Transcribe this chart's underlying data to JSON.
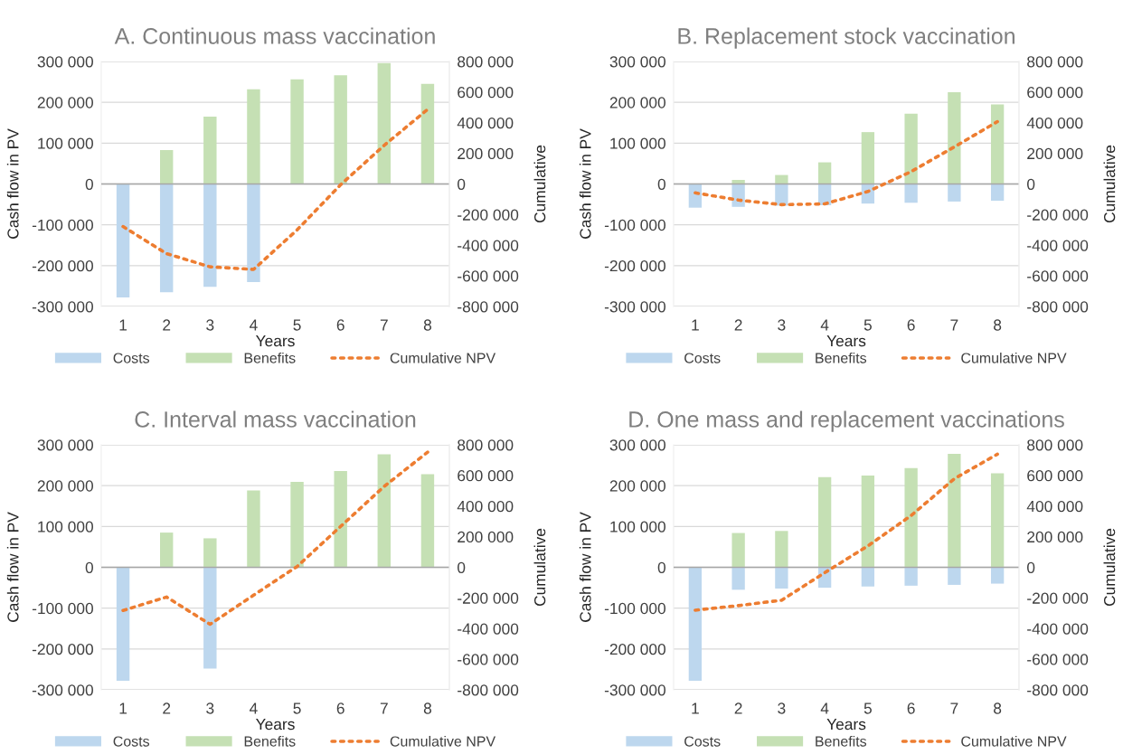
{
  "chart_data": [
    {
      "type": "bar",
      "stacked": true,
      "title": "A. Continuous mass vaccination",
      "xlabel": "Years",
      "ylabel": "Cash flow in PV",
      "y2label": "Cumulative",
      "categories": [
        "1",
        "2",
        "3",
        "4",
        "5",
        "6",
        "7",
        "8"
      ],
      "series": [
        {
          "name": "Costs",
          "color": "#bdd7ee",
          "values": [
            -278000,
            -265000,
            -252000,
            -240000,
            null,
            null,
            null,
            null
          ]
        },
        {
          "name": "Benefits",
          "color": "#c5e0b4",
          "values": [
            null,
            83000,
            165000,
            232000,
            256000,
            266000,
            296000,
            245000
          ]
        },
        {
          "name": "Cumulative NPV",
          "type": "line",
          "axis": "y2",
          "line_style": "dotted",
          "color": "#ed7d31",
          "values": [
            -278000,
            -455000,
            -541000,
            -558000,
            -300000,
            -5000,
            252000,
            487000
          ]
        }
      ],
      "ylim": [
        -300000,
        300000
      ],
      "yticks": [
        {
          "value": -300000,
          "label": "-300 000"
        },
        {
          "value": -200000,
          "label": "-200 000"
        },
        {
          "value": -100000,
          "label": "-100 000"
        },
        0,
        {
          "value": 100000,
          "label": "100 000"
        },
        {
          "value": 200000,
          "label": "200 000"
        },
        {
          "value": 300000,
          "label": "300 000"
        }
      ],
      "y2lim": [
        -800000,
        800000
      ],
      "y2ticks": [
        {
          "value": -800000,
          "label": "-800 000"
        },
        {
          "value": -600000,
          "label": "-600 000"
        },
        {
          "value": -400000,
          "label": "-400 000"
        },
        {
          "value": -200000,
          "label": "-200 000"
        },
        0,
        {
          "value": 200000,
          "label": "200 000"
        },
        {
          "value": 400000,
          "label": "400 000"
        },
        {
          "value": 600000,
          "label": "600 000"
        },
        {
          "value": 800000,
          "label": "800 000"
        }
      ],
      "grid": "y",
      "legend": "bottom"
    },
    {
      "type": "bar",
      "stacked": true,
      "title": "B. Replacement stock vaccination",
      "xlabel": "Years",
      "ylabel": "Cash flow in PV",
      "y2label": "Cumulative",
      "categories": [
        "1",
        "2",
        "3",
        "4",
        "5",
        "6",
        "7",
        "8"
      ],
      "series": [
        {
          "name": "Costs",
          "color": "#bdd7ee",
          "values": [
            -58000,
            -56000,
            -53000,
            -52000,
            -48000,
            -46000,
            -43000,
            -41000
          ]
        },
        {
          "name": "Benefits",
          "color": "#c5e0b4",
          "values": [
            null,
            10000,
            22000,
            53000,
            127000,
            172000,
            225000,
            195000
          ]
        },
        {
          "name": "Cumulative NPV",
          "type": "line",
          "axis": "y2",
          "line_style": "dotted",
          "color": "#ed7d31",
          "values": [
            -58000,
            -105000,
            -135000,
            -130000,
            -49000,
            81000,
            242000,
            407000
          ]
        }
      ],
      "ylim": [
        -300000,
        300000
      ],
      "yticks": [
        {
          "value": -300000,
          "label": "-300 000"
        },
        {
          "value": -200000,
          "label": "-200 000"
        },
        {
          "value": -100000,
          "label": "-100 000"
        },
        0,
        {
          "value": 100000,
          "label": "100 000"
        },
        {
          "value": 200000,
          "label": "200 000"
        },
        {
          "value": 300000,
          "label": "300 000"
        }
      ],
      "y2lim": [
        -800000,
        800000
      ],
      "y2ticks": [
        {
          "value": -800000,
          "label": "-800 000"
        },
        {
          "value": -600000,
          "label": "-600 000"
        },
        {
          "value": -400000,
          "label": "-400 000"
        },
        {
          "value": -200000,
          "label": "-200 000"
        },
        0,
        {
          "value": 200000,
          "label": "200 000"
        },
        {
          "value": 400000,
          "label": "400 000"
        },
        {
          "value": 600000,
          "label": "600 000"
        },
        {
          "value": 800000,
          "label": "800 000"
        }
      ],
      "grid": "y",
      "legend": "bottom"
    },
    {
      "type": "bar",
      "stacked": true,
      "title": "C. Interval mass vaccination",
      "xlabel": "Years",
      "ylabel": "Cash flow in PV",
      "y2label": "Cumulative",
      "categories": [
        "1",
        "2",
        "3",
        "4",
        "5",
        "6",
        "7",
        "8"
      ],
      "series": [
        {
          "name": "Costs",
          "color": "#bdd7ee",
          "values": [
            -278000,
            null,
            -248000,
            null,
            null,
            null,
            null,
            null
          ]
        },
        {
          "name": "Benefits",
          "color": "#c5e0b4",
          "values": [
            null,
            85000,
            71000,
            188000,
            209000,
            236000,
            277000,
            228000
          ]
        },
        {
          "name": "Cumulative NPV",
          "type": "line",
          "axis": "y2",
          "line_style": "dotted",
          "color": "#ed7d31",
          "values": [
            -282000,
            -194000,
            -372000,
            -182000,
            5000,
            267000,
            528000,
            752000
          ]
        }
      ],
      "ylim": [
        -300000,
        300000
      ],
      "yticks": [
        {
          "value": -300000,
          "label": "-300 000"
        },
        {
          "value": -200000,
          "label": "-200 000"
        },
        {
          "value": -100000,
          "label": "-100 000"
        },
        0,
        {
          "value": 100000,
          "label": "100 000"
        },
        {
          "value": 200000,
          "label": "200 000"
        },
        {
          "value": 300000,
          "label": "300 000"
        }
      ],
      "y2lim": [
        -800000,
        800000
      ],
      "y2ticks": [
        {
          "value": -800000,
          "label": "-800 000"
        },
        {
          "value": -600000,
          "label": "-600 000"
        },
        {
          "value": -400000,
          "label": "-400 000"
        },
        {
          "value": -200000,
          "label": "-200 000"
        },
        0,
        {
          "value": 200000,
          "label": "200 000"
        },
        {
          "value": 400000,
          "label": "400 000"
        },
        {
          "value": 600000,
          "label": "600 000"
        },
        {
          "value": 800000,
          "label": "800 000"
        }
      ],
      "grid": "y",
      "legend": "bottom"
    },
    {
      "type": "bar",
      "stacked": true,
      "title": "D. One mass and replacement vaccinations",
      "xlabel": "Years",
      "ylabel": "Cash flow in PV",
      "y2label": "Cumulative",
      "categories": [
        "1",
        "2",
        "3",
        "4",
        "5",
        "6",
        "7",
        "8"
      ],
      "series": [
        {
          "name": "Costs",
          "color": "#bdd7ee",
          "values": [
            -278000,
            -55000,
            -52000,
            -50000,
            -47000,
            -45000,
            -43000,
            -40000
          ]
        },
        {
          "name": "Benefits",
          "color": "#c5e0b4",
          "values": [
            null,
            84000,
            89000,
            221000,
            225000,
            243000,
            278000,
            230000
          ]
        },
        {
          "name": "Cumulative NPV",
          "type": "line",
          "axis": "y2",
          "line_style": "dotted",
          "color": "#ed7d31",
          "values": [
            -280000,
            -250000,
            -215000,
            -35000,
            140000,
            338000,
            578000,
            739000
          ]
        }
      ],
      "ylim": [
        -300000,
        300000
      ],
      "yticks": [
        {
          "value": -300000,
          "label": "-300 000"
        },
        {
          "value": -200000,
          "label": "-200 000"
        },
        {
          "value": -100000,
          "label": "-100 000"
        },
        0,
        {
          "value": 100000,
          "label": "100 000"
        },
        {
          "value": 200000,
          "label": "200 000"
        },
        {
          "value": 300000,
          "label": "300 000"
        }
      ],
      "y2lim": [
        -800000,
        800000
      ],
      "y2ticks": [
        {
          "value": -800000,
          "label": "-800 000"
        },
        {
          "value": -600000,
          "label": "-600 000"
        },
        {
          "value": -400000,
          "label": "-400 000"
        },
        {
          "value": -200000,
          "label": "-200 000"
        },
        0,
        {
          "value": 200000,
          "label": "200 000"
        },
        {
          "value": 400000,
          "label": "400 000"
        },
        {
          "value": 600000,
          "label": "600 000"
        },
        {
          "value": 800000,
          "label": "800 000"
        }
      ],
      "grid": "y",
      "legend": "bottom"
    }
  ]
}
